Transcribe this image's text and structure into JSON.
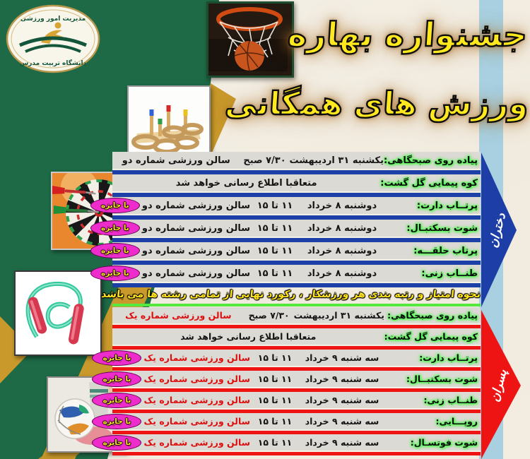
{
  "logo": {
    "top_text": "مدیریت امور ورزشی",
    "bottom_text": "دانشگاه تربیت مدرس"
  },
  "title": {
    "line1": "جشنواره بهاره",
    "line2": "ورزش های همگانی",
    "text_color": "#ffe81e"
  },
  "divider_note": "نحوه امتیاز و رتبه بندی هر ورزشکار ، رکورد نهایی از تمامی رشته ها می باشد",
  "badge_label": "با جایزه",
  "badge_color": "#ee2bcb",
  "photos": [
    "basketball-hoop-photo",
    "ring-toss-photo",
    "dartboard-darts-photo",
    "jump-rope-photo",
    "football-kick-photo"
  ],
  "sections": [
    {
      "id": "girls",
      "arrow_label": "دختران",
      "accent": "#1d3fa8",
      "location_color": "#161616",
      "rows": [
        {
          "label": "پیاده روی صبحگاهی:",
          "date": "یکشنبه ۳۱ اردیبهشت",
          "time": "۷/۳۰ صبح",
          "location": "سالن ورزشی شماره دو",
          "badge": false
        },
        {
          "label": "کوه پیمایی گل گشت:",
          "note": "متعاقبا اطلاع رسانی خواهد شد",
          "badge": false
        },
        {
          "label": "پرتــاب دارت:",
          "date": "دوشنبه ۸ خرداد",
          "time": "۱۱ تا ۱۵",
          "location": "سالن ورزشی شماره دو",
          "badge": true
        },
        {
          "label": "شوت بسکتبـال:",
          "date": "دوشنبه ۸ خرداد",
          "time": "۱۱ تا ۱۵",
          "location": "سالن ورزشی شماره دو",
          "badge": true
        },
        {
          "label": "پرتاب حلقـــه:",
          "date": "دوشنبه ۸ خرداد",
          "time": "۱۱ تا ۱۵",
          "location": "سالن ورزشی شماره دو",
          "badge": true
        },
        {
          "label": "طنــاب زنی:",
          "date": "دوشنبه ۸ خرداد",
          "time": "۱۱ تا ۱۵",
          "location": "سالن ورزشی شماره دو",
          "badge": true
        }
      ]
    },
    {
      "id": "boys",
      "arrow_label": "پسران",
      "accent": "#ee1414",
      "location_color": "#dd1010",
      "rows": [
        {
          "label": "پیاده روی صبحگاهی:",
          "date": "یکشنبه ۳۱ اردیبهشت",
          "time": "۷/۳۰ صبح",
          "location": "سالن ورزشی شماره یک",
          "badge": false
        },
        {
          "label": "کوه پیمایی گل گشت:",
          "note": "متعاقبا اطلاع رسانی خواهد شد",
          "badge": false
        },
        {
          "label": "پرتــاب دارت:",
          "date": "سه شنبه ۹ خرداد",
          "time": "۱۱ تا ۱۵",
          "location": "سالن ورزشی شماره یک",
          "badge": true
        },
        {
          "label": "شوت بسکتبــال:",
          "date": "سه شنبه ۹ خرداد",
          "time": "۱۱ تا ۱۵",
          "location": "سالن ورزشی شماره یک",
          "badge": true
        },
        {
          "label": "طنــاب زنی:",
          "date": "سه شنبه ۹ خرداد",
          "time": "۱۱ تا ۱۵",
          "location": "سالن ورزشی شماره یک",
          "badge": true
        },
        {
          "label": "روپـــایی:",
          "date": "سه شنبه ۹ خرداد",
          "time": "۱۱ تا ۱۵",
          "location": "سالن ورزشی شماره یک",
          "badge": true
        },
        {
          "label": "شوت فوتسـال:",
          "date": "سه شنبه ۹ خرداد",
          "time": "۱۱ تا ۱۵",
          "location": "سالن ورزشی شماره یک",
          "badge": true
        }
      ]
    }
  ]
}
